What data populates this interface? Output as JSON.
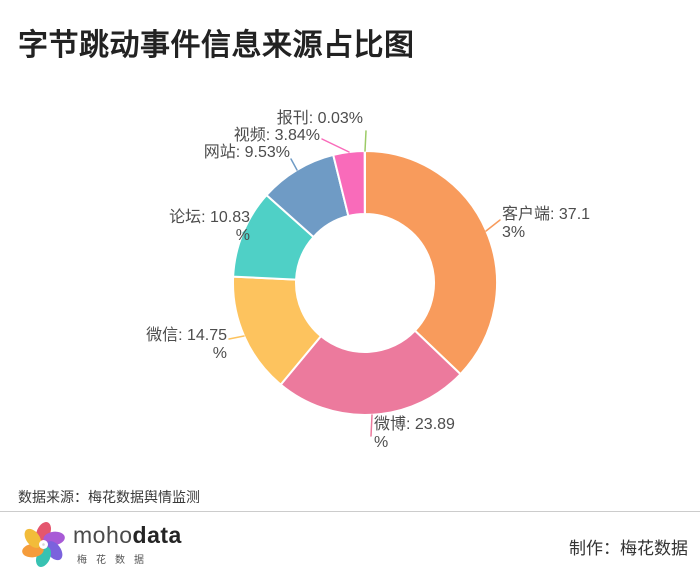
{
  "chart_data": {
    "type": "pie",
    "subtype": "donut",
    "title": "字节跳动事件信息来源占比图",
    "categories": [
      "客户端",
      "微博",
      "微信",
      "论坛",
      "网站",
      "视频",
      "报刊"
    ],
    "values": [
      37.13,
      23.89,
      14.75,
      10.83,
      9.53,
      3.84,
      0.03
    ],
    "unit": "%",
    "colors": [
      "#f89b5c",
      "#ec7a9d",
      "#fdc35e",
      "#4fd0c6",
      "#6f9bc5",
      "#f96bba",
      "#9ccb66"
    ],
    "label_format": "{name}: {value}%",
    "start_angle": "12-oclock",
    "direction": "clockwise",
    "legend": "none"
  },
  "footer": {
    "source_note": "数据来源：梅花数据舆情监测",
    "credit": "制作：梅花数据"
  },
  "logo": {
    "icon": "pinwheel-flower-icon",
    "brand_light": "moho",
    "brand_bold": "data",
    "subtext": "梅花数据",
    "petal_colors": [
      "#e4566e",
      "#a85ad6",
      "#7b62dd",
      "#38c2b2",
      "#f59c3b",
      "#f2bc3a"
    ]
  }
}
